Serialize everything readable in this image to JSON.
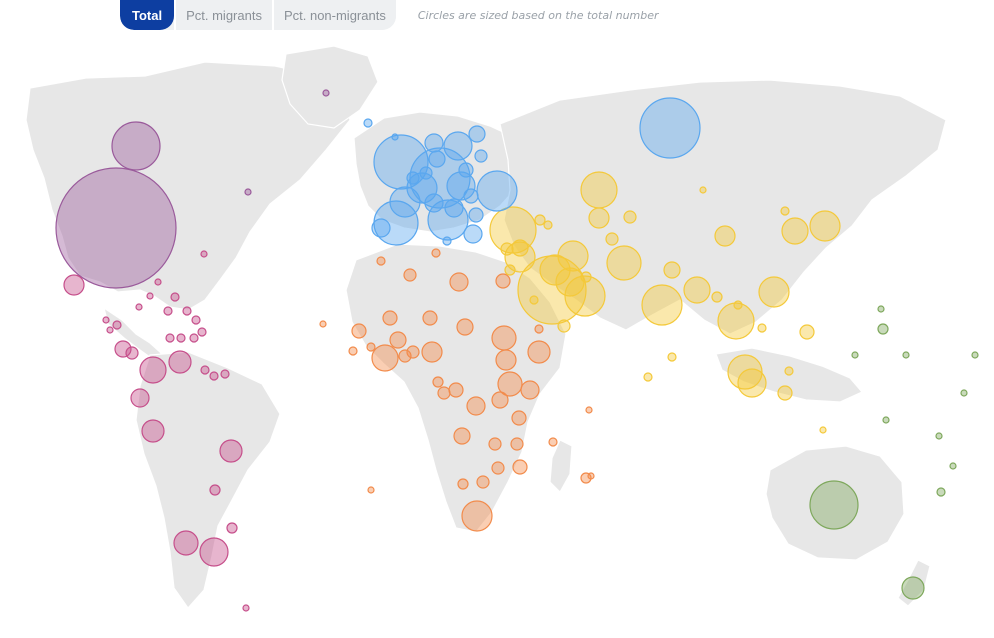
{
  "tabs": [
    {
      "label": "Total",
      "active": true
    },
    {
      "label": "Pct. migrants",
      "active": false
    },
    {
      "label": "Pct. non-migrants",
      "active": false
    }
  ],
  "note": "Circles are sized based on the total number",
  "colors": {
    "americas": "#c64f8b",
    "north_america": "#9a5a9b",
    "europe": "#5aa7ef",
    "africa": "#f28b4b",
    "asia": "#f4c93a",
    "oceania": "#7ea85c",
    "land": "#e7e7e7",
    "active_tab": "#0d3ea1"
  }
}
